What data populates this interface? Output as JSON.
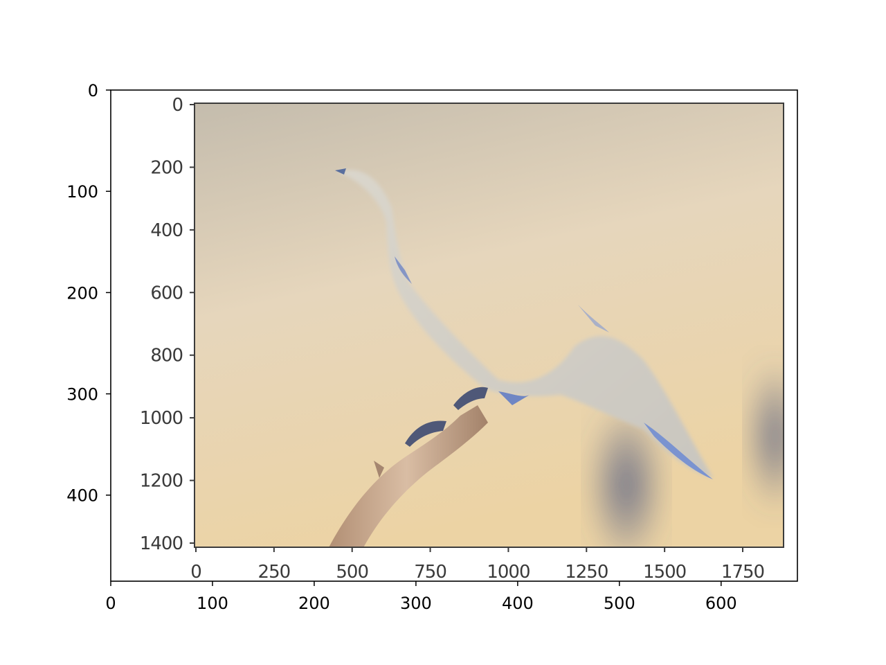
{
  "chart_data": {
    "type": "image",
    "title": "",
    "xlabel": "",
    "ylabel": "",
    "outer_axes": {
      "xlim": [
        0,
        675
      ],
      "ylim": [
        485,
        0
      ],
      "xticks": [
        0,
        100,
        200,
        300,
        400,
        500,
        600
      ],
      "yticks": [
        0,
        100,
        200,
        300,
        400
      ],
      "xtick_labels": [
        "0",
        "100",
        "200",
        "300",
        "400",
        "500",
        "600"
      ],
      "ytick_labels": [
        "0",
        "100",
        "200",
        "300",
        "400"
      ]
    },
    "inner_image_axes": {
      "xticks": [
        0,
        250,
        500,
        750,
        1000,
        1250,
        1500,
        1750
      ],
      "yticks": [
        0,
        200,
        400,
        600,
        800,
        1000,
        1200,
        1400
      ],
      "xtick_labels": [
        "0",
        "250",
        "500",
        "750",
        "1000",
        "1250",
        "1500",
        "1750"
      ],
      "ytick_labels": [
        "0",
        "200",
        "400",
        "600",
        "800",
        "1000",
        "1200",
        "1400"
      ]
    },
    "grid": false,
    "legend": "none"
  },
  "scene": {
    "subject": "bird-on-branch",
    "colors": {
      "bg_top": "#c9bfae",
      "bg_mid": "#e9d6b6",
      "bg_bottom": "#ead2a6",
      "bird_body": "#d2cec3",
      "bird_accent": "#6f86c4",
      "branch": "#c8a688",
      "branch_dark": "#8f6f5a",
      "shadow": "#5d6789"
    }
  }
}
